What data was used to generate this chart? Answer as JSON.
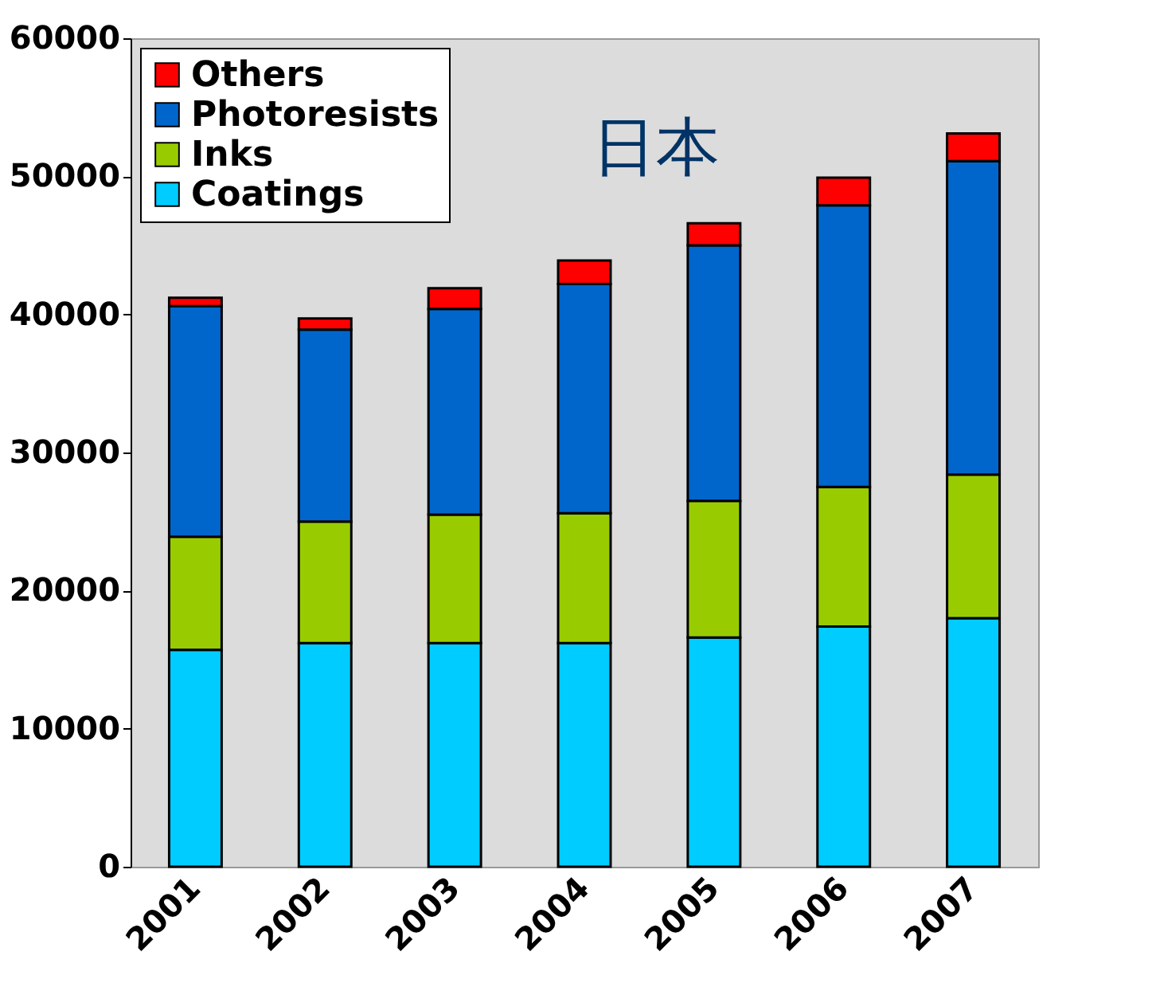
{
  "chart_data": {
    "type": "bar",
    "stacked": true,
    "categories": [
      "2001",
      "2002",
      "2003",
      "2004",
      "2005",
      "2006",
      "2007"
    ],
    "series": [
      {
        "name": "Coatings",
        "color": "#00ccff",
        "values": [
          15700,
          16200,
          16200,
          16200,
          16600,
          17400,
          18000
        ]
      },
      {
        "name": "Inks",
        "color": "#99cc00",
        "values": [
          8200,
          8800,
          9300,
          9400,
          9900,
          10100,
          10400
        ]
      },
      {
        "name": "Photoresists",
        "color": "#0066cc",
        "values": [
          16700,
          13900,
          14900,
          16600,
          18500,
          20400,
          22700
        ]
      },
      {
        "name": "Others",
        "color": "#ff0000",
        "values": [
          600,
          800,
          1500,
          1700,
          1600,
          2000,
          2000
        ]
      }
    ],
    "ylim": [
      0,
      60000
    ],
    "yticks": [
      0,
      10000,
      20000,
      30000,
      40000,
      50000,
      60000
    ],
    "grid": false,
    "legend": "top left",
    "annotations": [
      "日本"
    ]
  }
}
